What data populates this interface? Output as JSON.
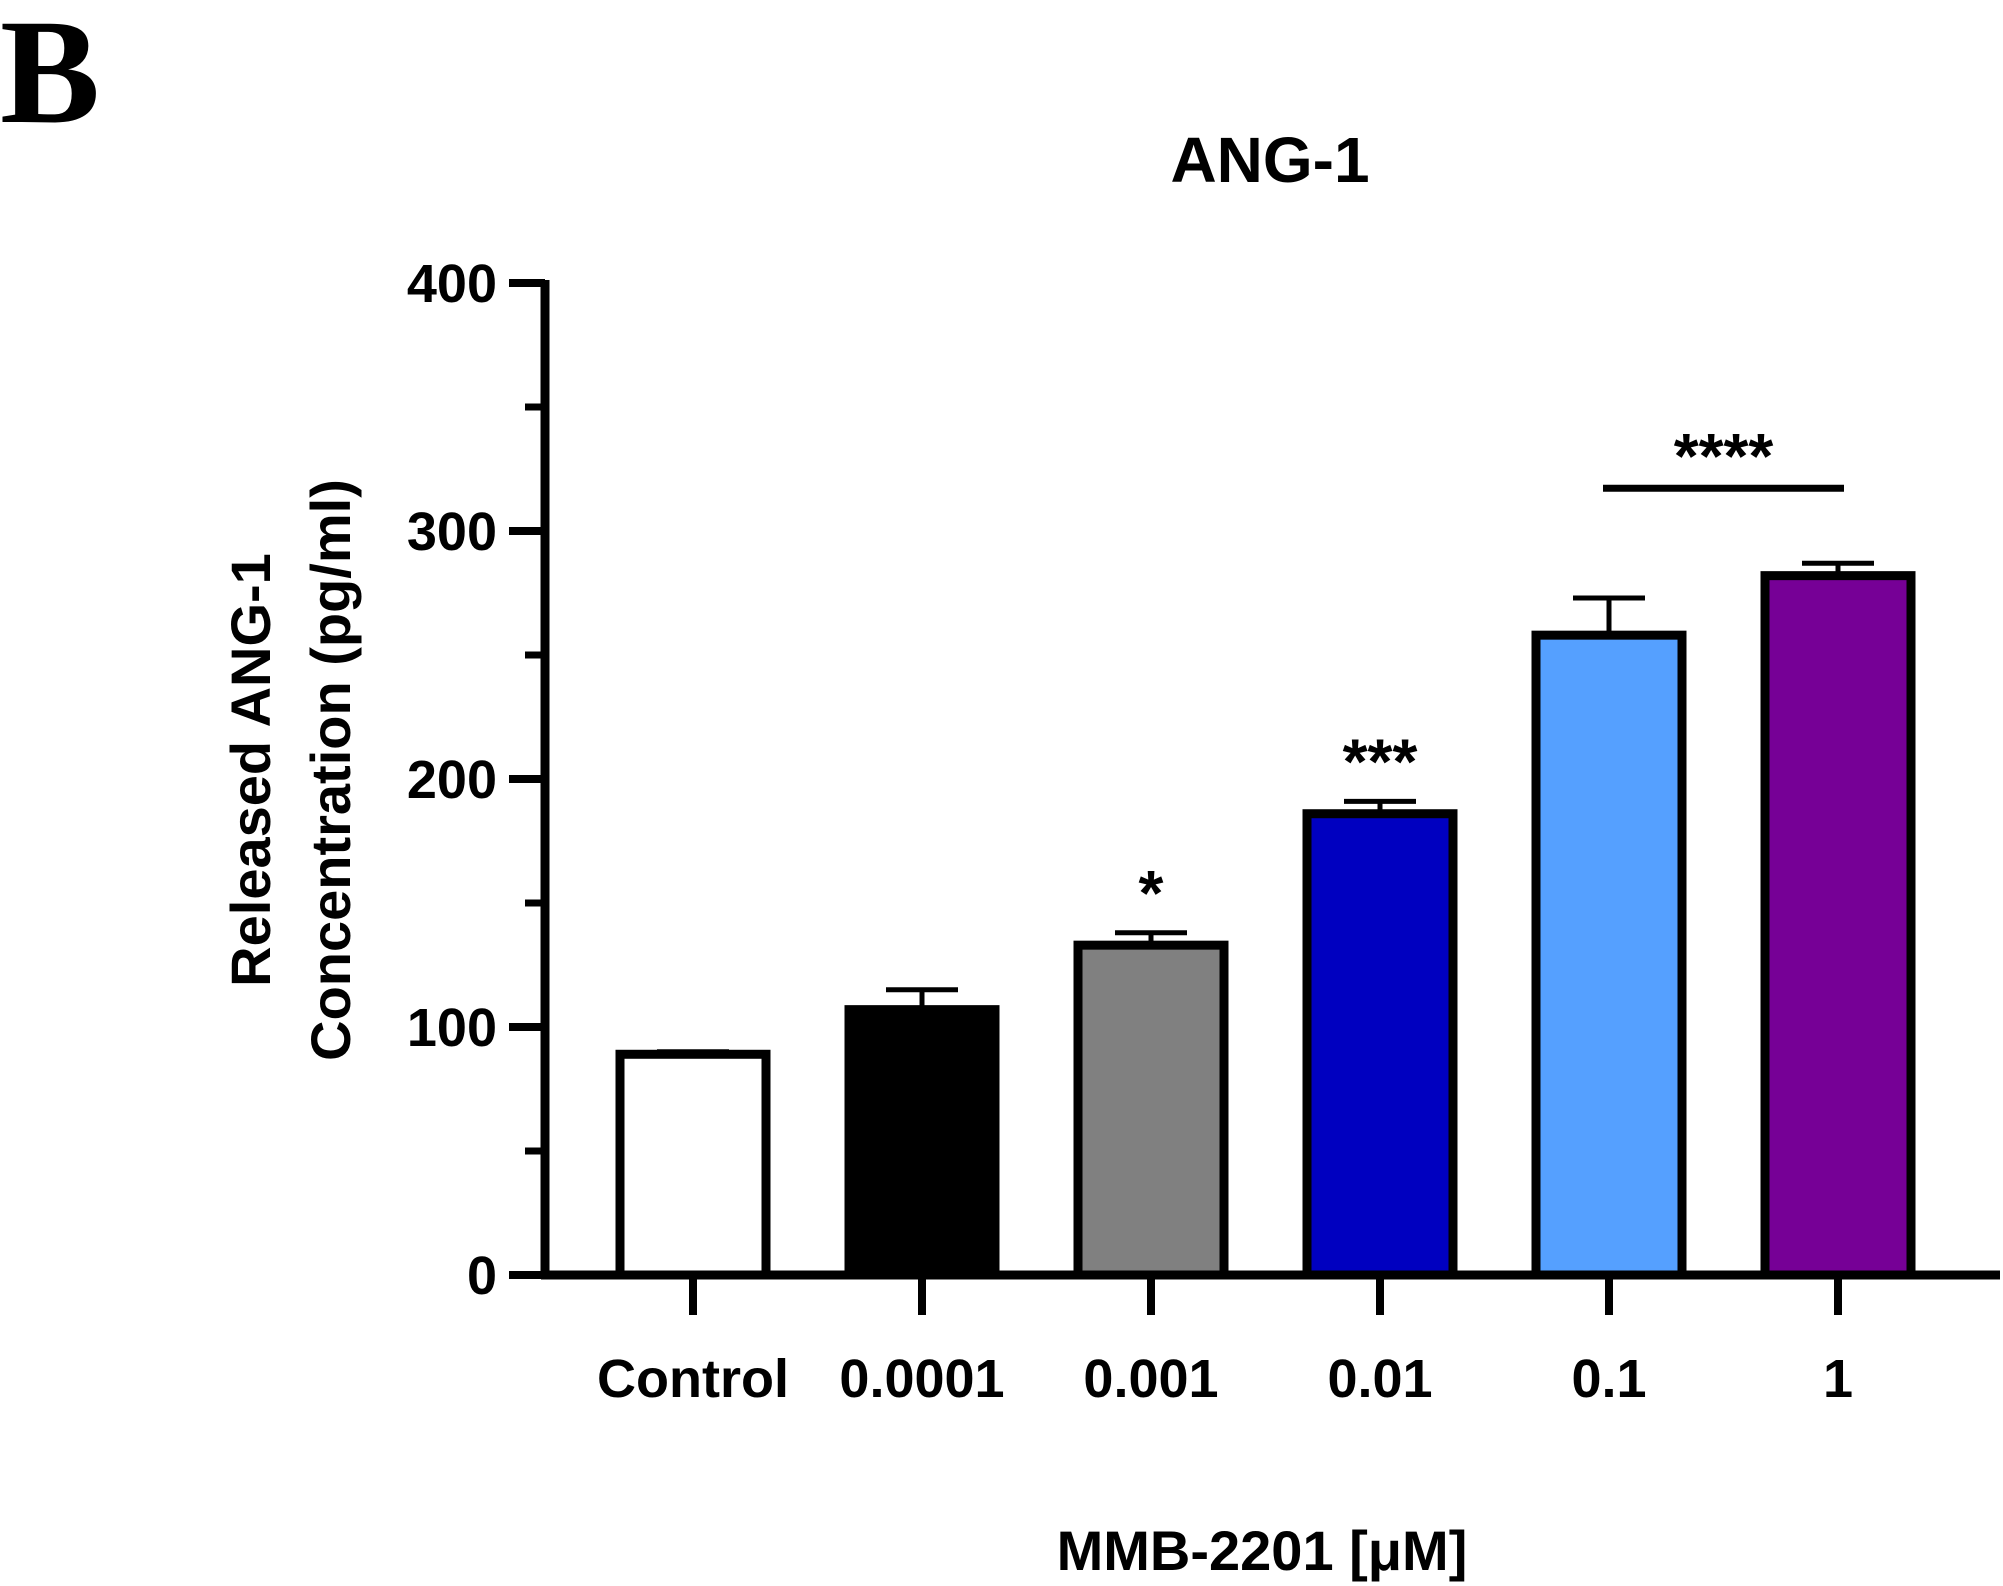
{
  "panel_label": "B",
  "chart_data": {
    "type": "bar",
    "title": "ANG-1",
    "xlabel": "MMB-2201 [μM]",
    "ylabel_lines": [
      "Released ANG-1",
      "Concentration (pg/ml)"
    ],
    "categories": [
      "Control",
      "0.0001",
      "0.001",
      "0.01",
      "0.1",
      "1"
    ],
    "values": [
      89,
      107,
      133,
      186,
      258,
      282
    ],
    "errors": [
      1,
      8,
      5,
      5,
      15,
      5
    ],
    "colors": [
      "#ffffff",
      "#000000",
      "#808080",
      "#0000c0",
      "#55a0ff",
      "#760096"
    ],
    "ylim": [
      0,
      400
    ],
    "yticks": [
      "0",
      "100",
      "200",
      "300",
      "400"
    ],
    "ytick_values": [
      0,
      100,
      200,
      300,
      400
    ],
    "annotations": [
      {
        "category_index": 2,
        "text": "*"
      },
      {
        "category_index": 3,
        "text": "***"
      },
      {
        "category_index": 4,
        "text": "****",
        "span_to_index": 5,
        "bracket": true
      }
    ],
    "grid": false,
    "legend": "none"
  }
}
